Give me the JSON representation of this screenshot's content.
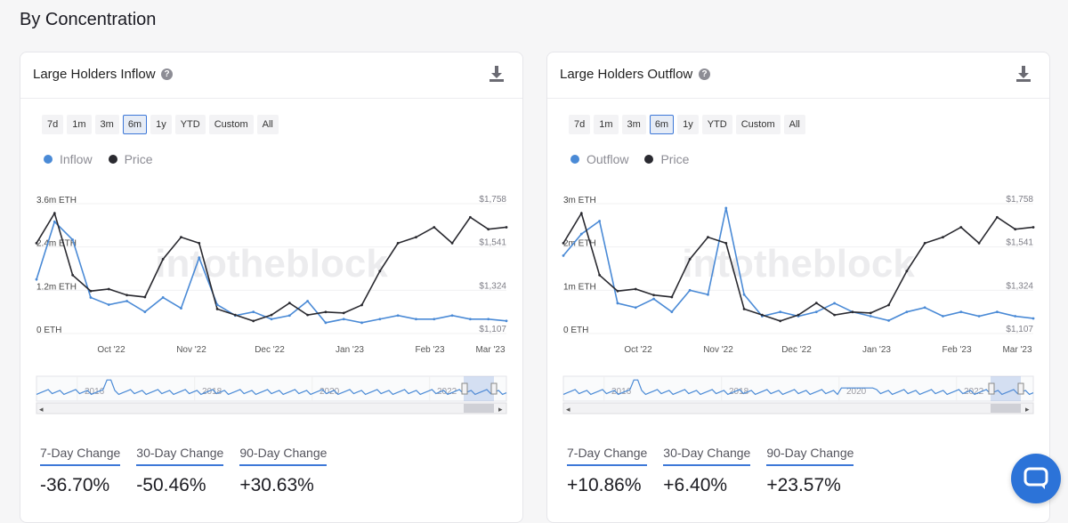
{
  "page": {
    "section_title": "By Concentration"
  },
  "colors": {
    "flow": "#4a8ad6",
    "price": "#2a2a30",
    "accent": "#3d78d8",
    "chat": "#2c73d8"
  },
  "icons": {
    "help": "help-icon",
    "download": "download-icon",
    "chat": "chat-bubble-icon"
  },
  "range_buttons": [
    "7d",
    "1m",
    "3m",
    "6m",
    "1y",
    "YTD",
    "Custom",
    "All"
  ],
  "active_range": "6m",
  "watermark": "intotheblock",
  "panels": [
    {
      "title": "Large Holders Inflow",
      "help_glyph": "?",
      "legend": [
        {
          "name": "Inflow"
        },
        {
          "name": "Price"
        }
      ],
      "left_axis": [
        "3.6m ETH",
        "2.4m ETH",
        "1.2m ETH",
        "0 ETH"
      ],
      "right_axis": [
        "$1,758",
        "$1,541",
        "$1,324",
        "$1,107"
      ],
      "x_axis": [
        "Oct '22",
        "Nov '22",
        "Dec '22",
        "Jan '23",
        "Feb '23",
        "Mar '23"
      ],
      "navigator_years": [
        "2016",
        "2018",
        "2020",
        "2022"
      ],
      "changes": [
        {
          "label": "7-Day Change",
          "value": "-36.70%"
        },
        {
          "label": "30-Day Change",
          "value": "-50.46%"
        },
        {
          "label": "90-Day Change",
          "value": "+30.63%"
        }
      ]
    },
    {
      "title": "Large Holders Outflow",
      "help_glyph": "?",
      "legend": [
        {
          "name": "Outflow"
        },
        {
          "name": "Price"
        }
      ],
      "left_axis": [
        "3m ETH",
        "2m ETH",
        "1m ETH",
        "0 ETH"
      ],
      "right_axis": [
        "$1,758",
        "$1,541",
        "$1,324",
        "$1,107"
      ],
      "x_axis": [
        "Oct '22",
        "Nov '22",
        "Dec '22",
        "Jan '23",
        "Feb '23",
        "Mar '23"
      ],
      "navigator_years": [
        "2016",
        "2018",
        "2020",
        "2022"
      ],
      "changes": [
        {
          "label": "7-Day Change",
          "value": "+10.86%"
        },
        {
          "label": "30-Day Change",
          "value": "+6.40%"
        },
        {
          "label": "90-Day Change",
          "value": "+23.57%"
        }
      ]
    }
  ],
  "chart_data": [
    {
      "type": "line",
      "title": "Large Holders Inflow",
      "x": [
        "2022-09-01",
        "2022-09-08",
        "2022-09-15",
        "2022-09-22",
        "2022-09-29",
        "2022-10-06",
        "2022-10-13",
        "2022-10-20",
        "2022-10-27",
        "2022-11-03",
        "2022-11-10",
        "2022-11-17",
        "2022-11-24",
        "2022-12-01",
        "2022-12-08",
        "2022-12-15",
        "2022-12-22",
        "2022-12-29",
        "2023-01-05",
        "2023-01-12",
        "2023-01-19",
        "2023-01-26",
        "2023-02-02",
        "2023-02-09",
        "2023-02-16",
        "2023-02-23",
        "2023-03-02"
      ],
      "series": [
        {
          "name": "Inflow",
          "unit": "ETH",
          "values": [
            1.5,
            3.1,
            2.6,
            1.0,
            0.8,
            0.9,
            0.6,
            1.0,
            0.7,
            2.1,
            0.8,
            0.5,
            0.6,
            0.4,
            0.5,
            0.9,
            0.3,
            0.4,
            0.3,
            0.4,
            0.5,
            0.4,
            0.4,
            0.5,
            0.4,
            0.4,
            0.35
          ]
        },
        {
          "name": "Price",
          "unit": "USD",
          "values": [
            1560,
            1710,
            1400,
            1320,
            1330,
            1300,
            1290,
            1480,
            1590,
            1560,
            1230,
            1200,
            1170,
            1200,
            1260,
            1200,
            1215,
            1210,
            1250,
            1420,
            1560,
            1590,
            1640,
            1560,
            1690,
            1630,
            1640
          ]
        }
      ],
      "left_range": [
        0,
        3.6
      ],
      "right_range": [
        1107,
        1758
      ],
      "legend_position": "top-left"
    },
    {
      "type": "line",
      "title": "Large Holders Outflow",
      "x": [
        "2022-09-01",
        "2022-09-08",
        "2022-09-15",
        "2022-09-22",
        "2022-09-29",
        "2022-10-06",
        "2022-10-13",
        "2022-10-20",
        "2022-10-27",
        "2022-11-03",
        "2022-11-10",
        "2022-11-17",
        "2022-11-24",
        "2022-12-01",
        "2022-12-08",
        "2022-12-15",
        "2022-12-22",
        "2022-12-29",
        "2023-01-05",
        "2023-01-12",
        "2023-01-19",
        "2023-01-26",
        "2023-02-02",
        "2023-02-09",
        "2023-02-16",
        "2023-02-23",
        "2023-03-02"
      ],
      "series": [
        {
          "name": "Outflow",
          "unit": "ETH",
          "values": [
            1.8,
            2.3,
            2.6,
            0.7,
            0.6,
            0.8,
            0.5,
            1.0,
            0.9,
            2.9,
            0.9,
            0.4,
            0.5,
            0.4,
            0.5,
            0.7,
            0.5,
            0.4,
            0.3,
            0.5,
            0.6,
            0.4,
            0.5,
            0.4,
            0.5,
            0.4,
            0.35
          ]
        },
        {
          "name": "Price",
          "unit": "USD",
          "values": [
            1560,
            1710,
            1400,
            1320,
            1330,
            1300,
            1290,
            1480,
            1590,
            1560,
            1230,
            1200,
            1170,
            1200,
            1260,
            1200,
            1215,
            1210,
            1250,
            1420,
            1560,
            1590,
            1640,
            1560,
            1690,
            1630,
            1640
          ]
        }
      ],
      "left_range": [
        0,
        3
      ],
      "right_range": [
        1107,
        1758
      ],
      "legend_position": "top-left"
    }
  ]
}
